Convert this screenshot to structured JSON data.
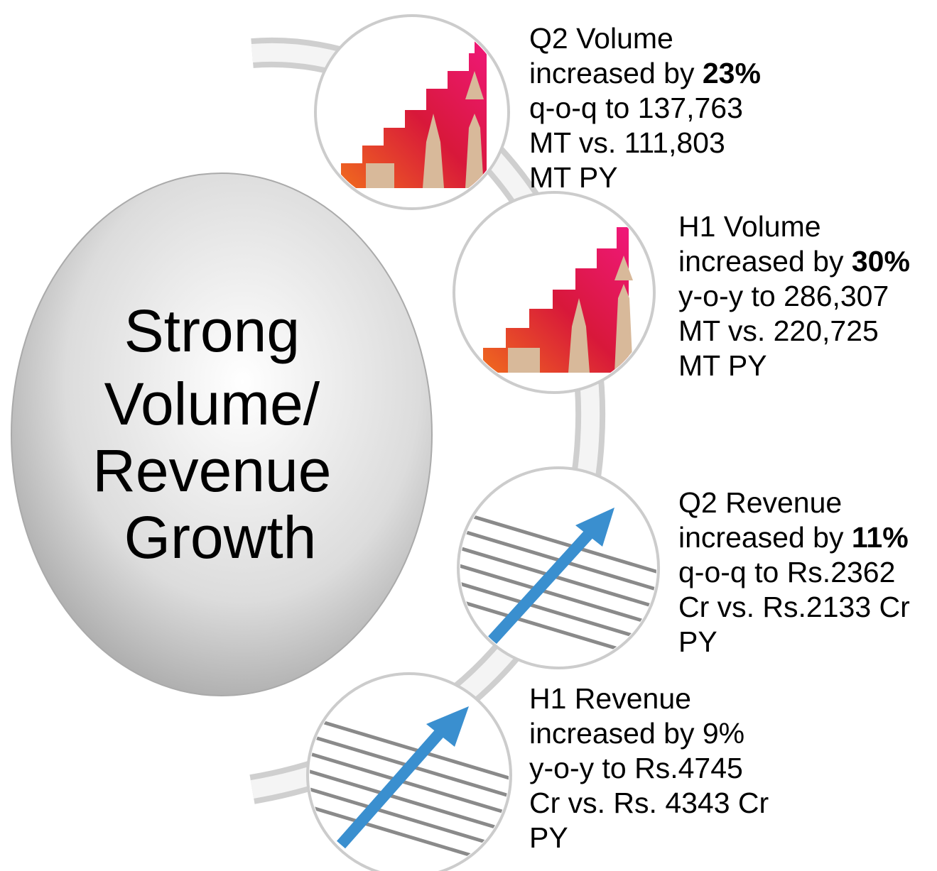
{
  "center": {
    "lines": [
      "Strong",
      "Volume/",
      "Revenue",
      "Growth"
    ]
  },
  "items": [
    {
      "title": "Q2 Volume",
      "prefix": "increased by",
      "change": "23%",
      "rest": [
        "q-o-q to 137,763",
        "MT vs. 111,803",
        "MT PY"
      ]
    },
    {
      "title": "H1 Volume",
      "prefix": "increased by",
      "change": "30%",
      "rest": [
        "y-o-y to 286,307",
        "MT vs. 220,725",
        "MT PY"
      ]
    },
    {
      "title": "Q2 Revenue",
      "prefix": "increased by",
      "change": "11%",
      "rest": [
        "q-o-q to Rs.2362",
        "Cr vs. Rs.2133 Cr",
        "PY"
      ]
    },
    {
      "title": "H1 Revenue",
      "prefix": "increased by",
      "change": "9%",
      "rest": [
        "y-o-y to Rs.4745",
        "Cr vs. Rs. 4343 Cr",
        "PY"
      ]
    }
  ]
}
